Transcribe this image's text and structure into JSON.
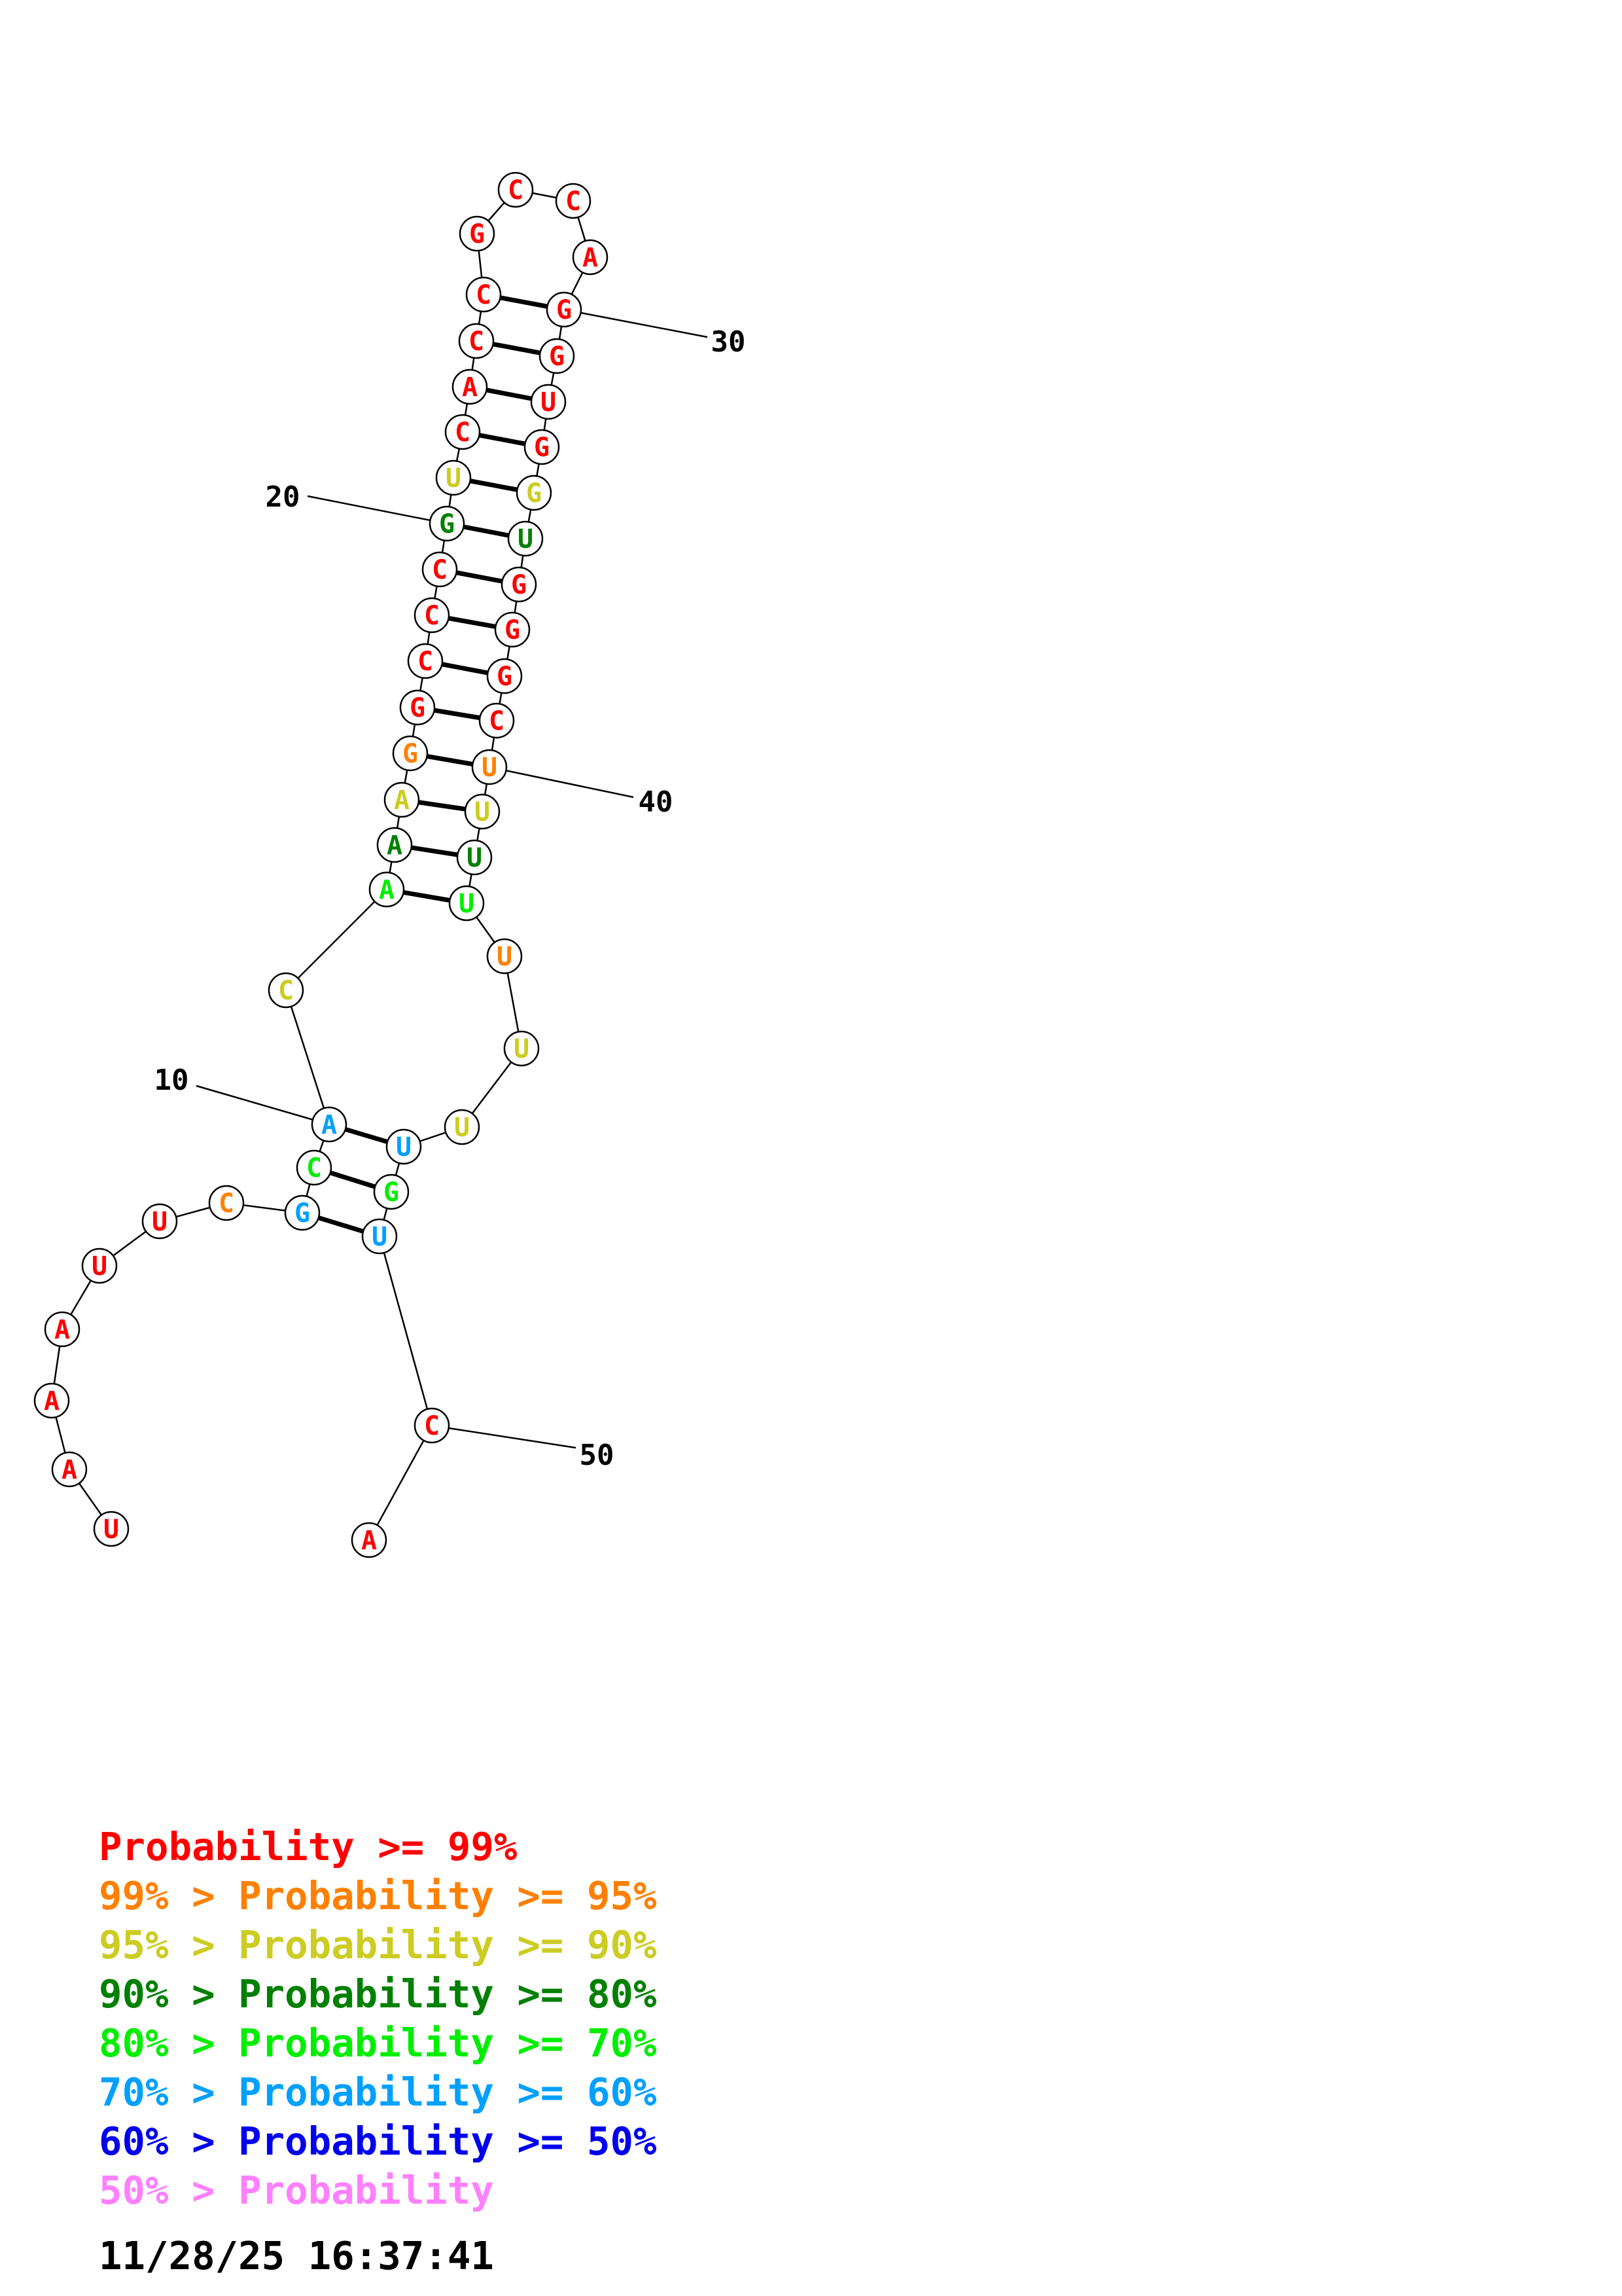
{
  "structure": {
    "nucleotides": [
      {
        "n": 1,
        "b": "U",
        "p": "p99"
      },
      {
        "n": 2,
        "b": "A",
        "p": "p99"
      },
      {
        "n": 3,
        "b": "A",
        "p": "p99"
      },
      {
        "n": 4,
        "b": "A",
        "p": "p99"
      },
      {
        "n": 5,
        "b": "U",
        "p": "p99"
      },
      {
        "n": 6,
        "b": "U",
        "p": "p99"
      },
      {
        "n": 7,
        "b": "C",
        "p": "p95"
      },
      {
        "n": 8,
        "b": "G",
        "p": "p60"
      },
      {
        "n": 9,
        "b": "C",
        "p": "p70"
      },
      {
        "n": 10,
        "b": "A",
        "p": "p60"
      },
      {
        "n": 11,
        "b": "C",
        "p": "p90"
      },
      {
        "n": 12,
        "b": "A",
        "p": "p70"
      },
      {
        "n": 13,
        "b": "A",
        "p": "p80"
      },
      {
        "n": 14,
        "b": "A",
        "p": "p90"
      },
      {
        "n": 15,
        "b": "G",
        "p": "p95"
      },
      {
        "n": 16,
        "b": "G",
        "p": "p99"
      },
      {
        "n": 17,
        "b": "C",
        "p": "p99"
      },
      {
        "n": 18,
        "b": "C",
        "p": "p99"
      },
      {
        "n": 19,
        "b": "C",
        "p": "p99"
      },
      {
        "n": 20,
        "b": "G",
        "p": "p80"
      },
      {
        "n": 21,
        "b": "U",
        "p": "p90"
      },
      {
        "n": 22,
        "b": "C",
        "p": "p99"
      },
      {
        "n": 23,
        "b": "A",
        "p": "p99"
      },
      {
        "n": 24,
        "b": "C",
        "p": "p99"
      },
      {
        "n": 25,
        "b": "C",
        "p": "p99"
      },
      {
        "n": 26,
        "b": "G",
        "p": "p99"
      },
      {
        "n": 27,
        "b": "C",
        "p": "p99"
      },
      {
        "n": 28,
        "b": "C",
        "p": "p99"
      },
      {
        "n": 29,
        "b": "A",
        "p": "p99"
      },
      {
        "n": 30,
        "b": "G",
        "p": "p99"
      },
      {
        "n": 31,
        "b": "G",
        "p": "p99"
      },
      {
        "n": 32,
        "b": "U",
        "p": "p99"
      },
      {
        "n": 33,
        "b": "G",
        "p": "p99"
      },
      {
        "n": 34,
        "b": "G",
        "p": "p90"
      },
      {
        "n": 35,
        "b": "U",
        "p": "p80"
      },
      {
        "n": 36,
        "b": "G",
        "p": "p99"
      },
      {
        "n": 37,
        "b": "G",
        "p": "p99"
      },
      {
        "n": 38,
        "b": "G",
        "p": "p99"
      },
      {
        "n": 39,
        "b": "C",
        "p": "p99"
      },
      {
        "n": 40,
        "b": "U",
        "p": "p95"
      },
      {
        "n": 41,
        "b": "U",
        "p": "p90"
      },
      {
        "n": 42,
        "b": "U",
        "p": "p80"
      },
      {
        "n": 43,
        "b": "U",
        "p": "p70"
      },
      {
        "n": 44,
        "b": "U",
        "p": "p95"
      },
      {
        "n": 45,
        "b": "U",
        "p": "p90"
      },
      {
        "n": 46,
        "b": "U",
        "p": "p90"
      },
      {
        "n": 47,
        "b": "U",
        "p": "p60"
      },
      {
        "n": 48,
        "b": "G",
        "p": "p70"
      },
      {
        "n": 49,
        "b": "U",
        "p": "p60"
      },
      {
        "n": 50,
        "b": "C",
        "p": "p99"
      },
      {
        "n": 51,
        "b": "A",
        "p": "p99"
      }
    ],
    "pairs": [
      [
        8,
        49
      ],
      [
        9,
        48
      ],
      [
        10,
        47
      ],
      [
        12,
        43
      ],
      [
        13,
        42
      ],
      [
        14,
        41
      ],
      [
        15,
        40
      ],
      [
        16,
        39
      ],
      [
        17,
        38
      ],
      [
        18,
        37
      ],
      [
        19,
        36
      ],
      [
        20,
        35
      ],
      [
        21,
        34
      ],
      [
        22,
        33
      ],
      [
        23,
        32
      ],
      [
        24,
        31
      ],
      [
        25,
        30
      ]
    ],
    "number_labels": [
      {
        "n": 10,
        "text": "10"
      },
      {
        "n": 20,
        "text": "20"
      },
      {
        "n": 30,
        "text": "30"
      },
      {
        "n": 40,
        "text": "40"
      },
      {
        "n": 50,
        "text": "50"
      }
    ]
  },
  "colors": {
    "p99": "#ff0000",
    "p95": "#ff8000",
    "p90": "#cccc22",
    "p80": "#008000",
    "p70": "#00ee00",
    "p60": "#00a0ff",
    "p50": "#0000ee",
    "p0": "#ff80ff"
  },
  "legend": [
    {
      "prefix": "",
      "main": "Probability >= 99%",
      "color": "p99"
    },
    {
      "prefix": "99% > ",
      "main": "Probability >= 95%",
      "color": "p95"
    },
    {
      "prefix": "95% > ",
      "main": "Probability >= 90%",
      "color": "p90"
    },
    {
      "prefix": "90% > ",
      "main": "Probability >= 80%",
      "color": "p80"
    },
    {
      "prefix": "80% > ",
      "main": "Probability >= 70%",
      "color": "p70"
    },
    {
      "prefix": "70% > ",
      "main": "Probability >= 60%",
      "color": "p60"
    },
    {
      "prefix": "60% > ",
      "main": "Probability >= 50%",
      "color": "p50"
    },
    {
      "prefix": "50% > ",
      "main": "Probability",
      "color": "p0"
    }
  ],
  "timestamp": "11/28/25 16:37:41"
}
